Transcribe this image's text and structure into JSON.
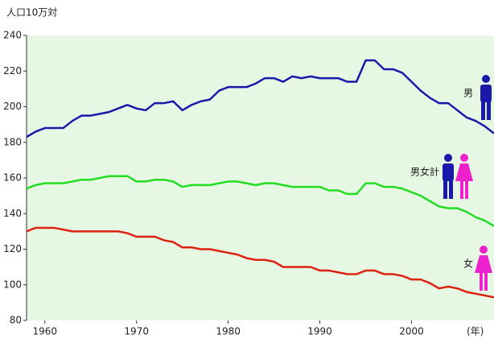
{
  "chart_data": {
    "type": "line",
    "unit_label": "人口10万対",
    "x_label": "(年)",
    "x": [
      1958,
      1959,
      1960,
      1961,
      1962,
      1963,
      1964,
      1965,
      1966,
      1967,
      1968,
      1969,
      1970,
      1971,
      1972,
      1973,
      1974,
      1975,
      1976,
      1977,
      1978,
      1979,
      1980,
      1981,
      1982,
      1983,
      1984,
      1985,
      1986,
      1987,
      1988,
      1989,
      1990,
      1991,
      1992,
      1993,
      1994,
      1995,
      1996,
      1997,
      1998,
      1999,
      2000,
      2001,
      2002,
      2003,
      2004,
      2005,
      2006,
      2007,
      2008,
      2009
    ],
    "series": [
      {
        "name": "男",
        "color": "#1a1aaa",
        "values": [
          183,
          186,
          188,
          188,
          188,
          192,
          195,
          195,
          196,
          197,
          199,
          201,
          199,
          198,
          202,
          202,
          203,
          198,
          201,
          203,
          204,
          209,
          211,
          211,
          211,
          213,
          216,
          216,
          214,
          217,
          216,
          217,
          216,
          216,
          216,
          214,
          214,
          226,
          226,
          221,
          221,
          219,
          214,
          209,
          205,
          202,
          202,
          198,
          194,
          192,
          189,
          185
        ]
      },
      {
        "name": "男女計",
        "color": "#22dd22",
        "values": [
          154,
          156,
          157,
          157,
          157,
          158,
          159,
          159,
          160,
          161,
          161,
          161,
          158,
          158,
          159,
          159,
          158,
          155,
          156,
          156,
          156,
          157,
          158,
          158,
          157,
          156,
          157,
          157,
          156,
          155,
          155,
          155,
          155,
          153,
          153,
          151,
          151,
          157,
          157,
          155,
          155,
          154,
          152,
          150,
          147,
          144,
          143,
          143,
          141,
          138,
          136,
          133
        ]
      },
      {
        "name": "女",
        "color": "#dd2211",
        "values": [
          130,
          132,
          132,
          132,
          131,
          130,
          130,
          130,
          130,
          130,
          130,
          129,
          127,
          127,
          127,
          125,
          124,
          121,
          121,
          120,
          120,
          119,
          118,
          117,
          115,
          114,
          114,
          113,
          110,
          110,
          110,
          110,
          108,
          108,
          107,
          106,
          106,
          108,
          108,
          106,
          106,
          105,
          103,
          103,
          101,
          98,
          99,
          98,
          96,
          95,
          94,
          93
        ]
      }
    ],
    "xlim": [
      1958,
      2009
    ],
    "ylim": [
      80,
      240
    ],
    "xticks": [
      1960,
      1970,
      1980,
      1990,
      2000
    ],
    "yticks": [
      80,
      100,
      120,
      140,
      160,
      180,
      200,
      220,
      240
    ]
  }
}
